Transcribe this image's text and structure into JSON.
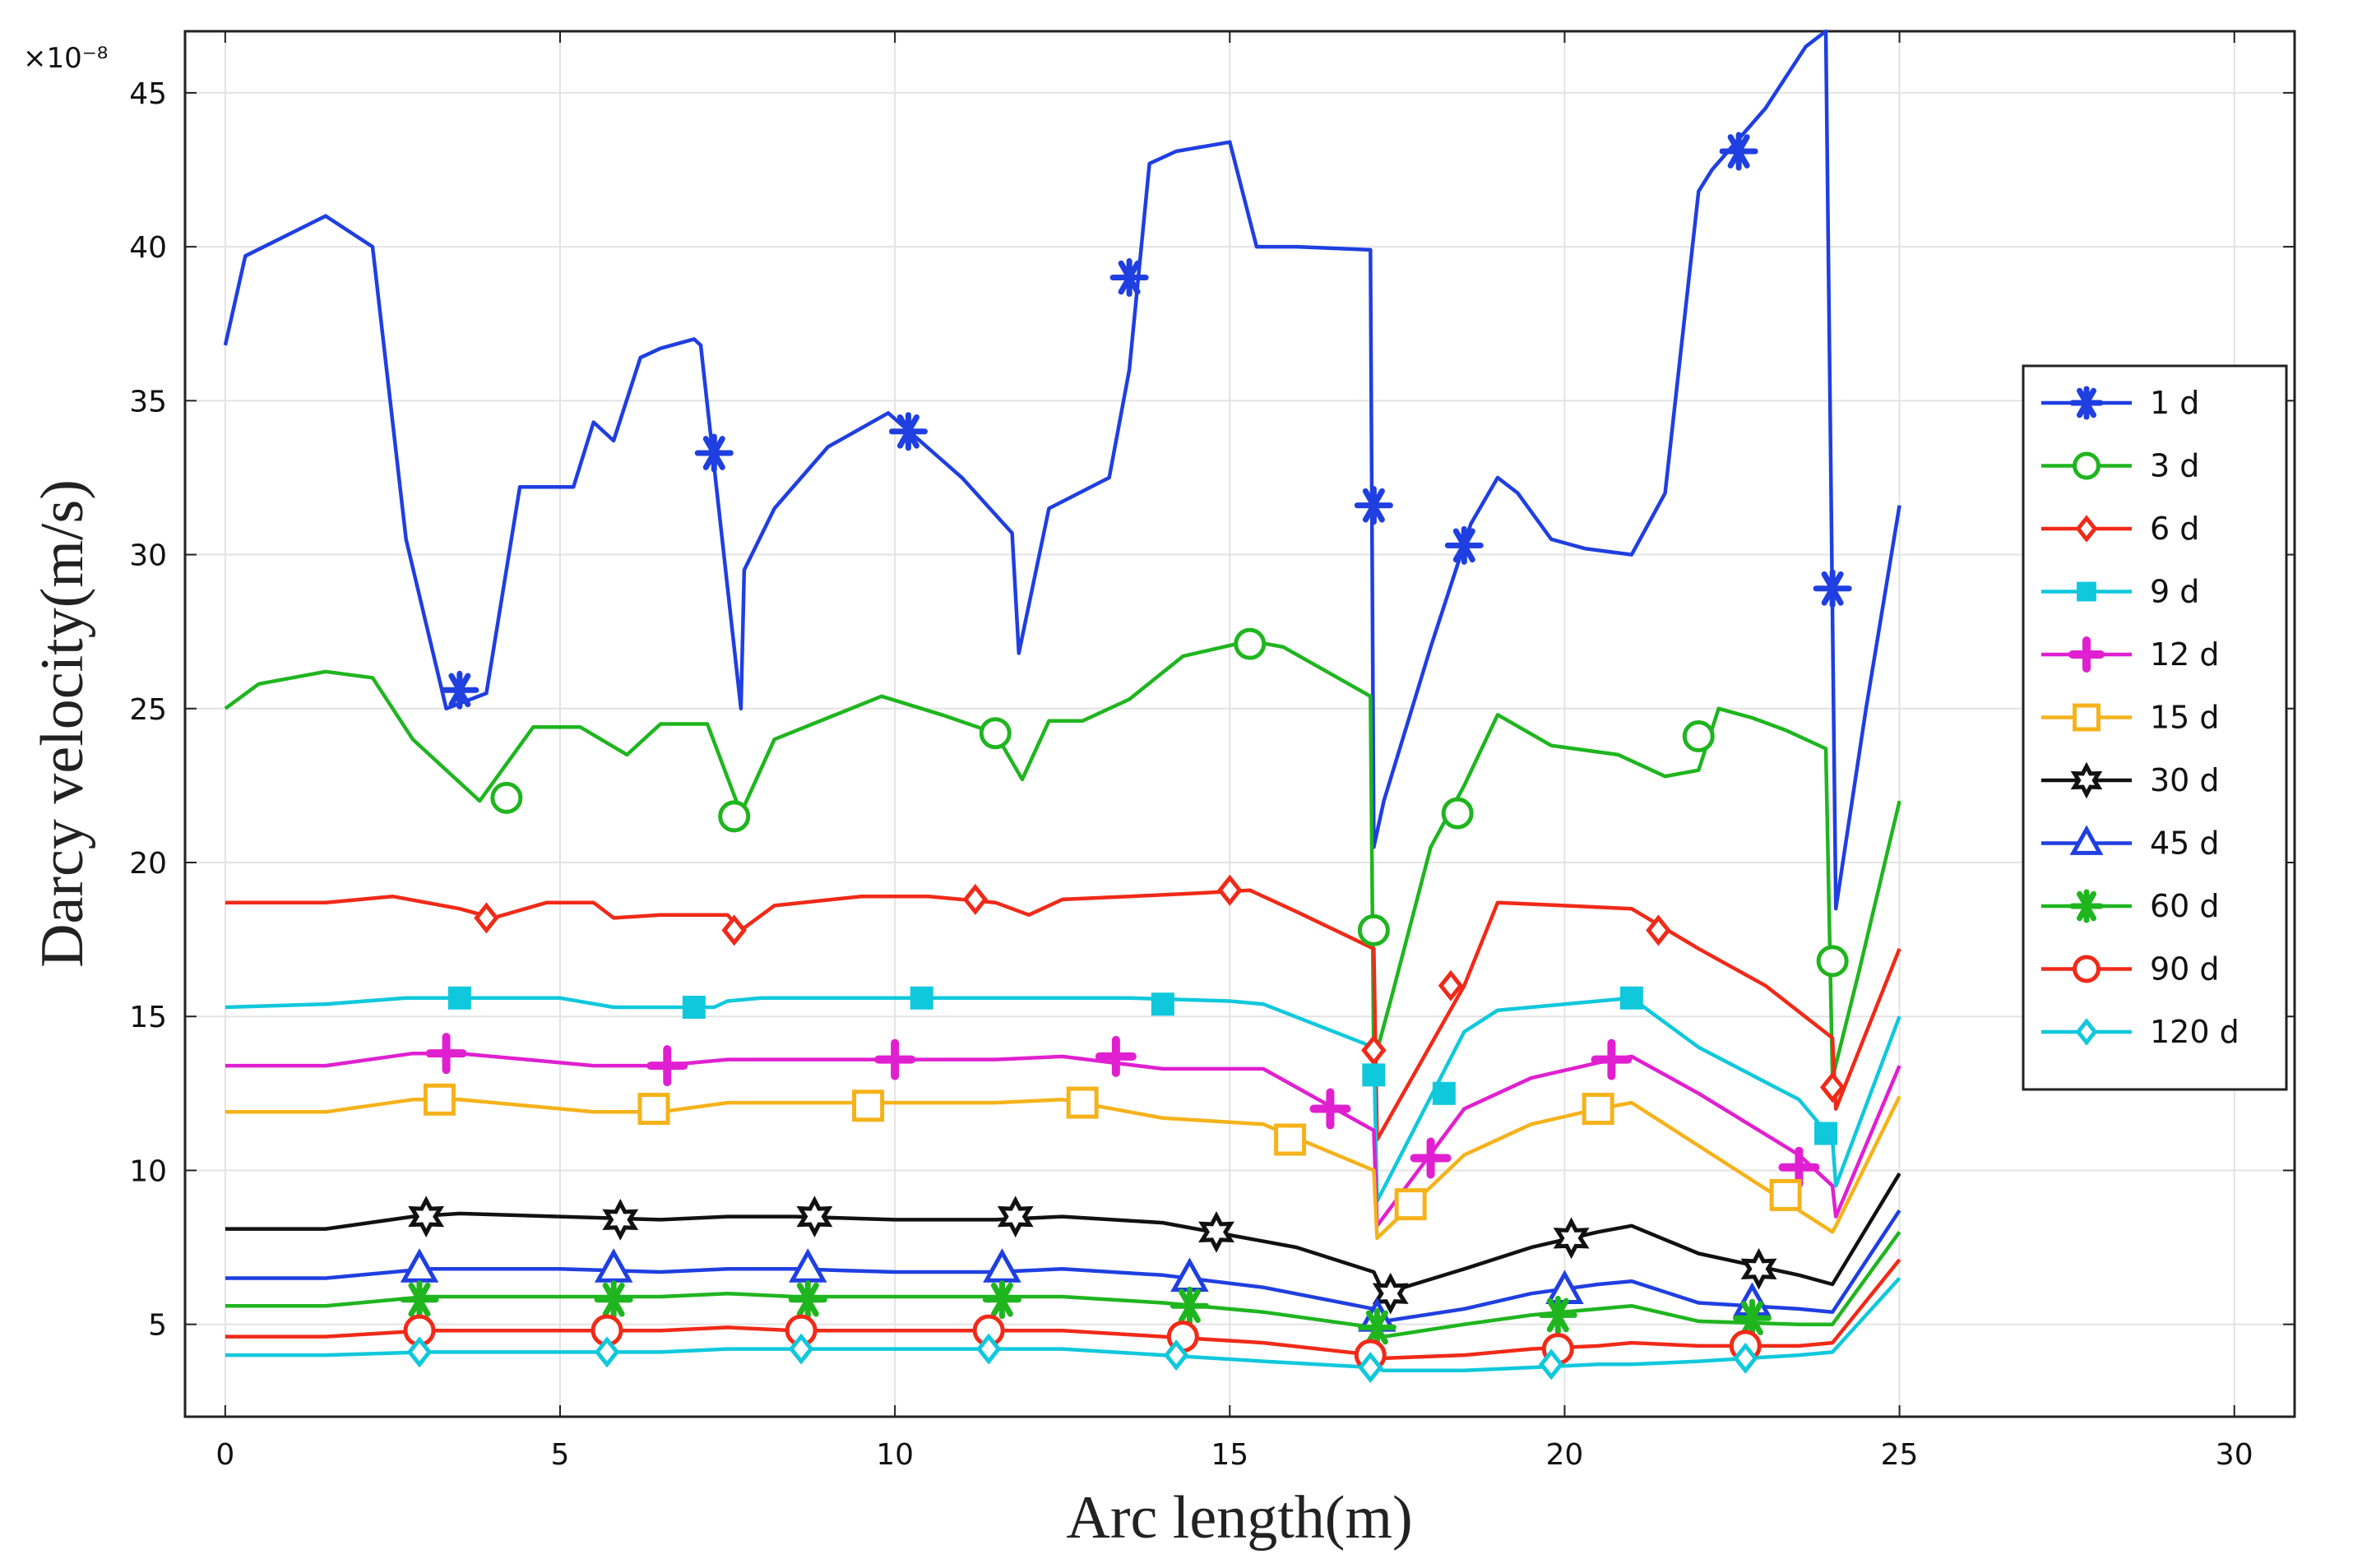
{
  "chart_data": {
    "type": "line",
    "title": "",
    "xlabel": "Arc length(m)",
    "ylabel": "Darcy velocity(m/s)",
    "y_exponent_label": "×10⁻⁸",
    "xlim": [
      -0.6,
      30.9
    ],
    "ylim": [
      2.0,
      47.0
    ],
    "xticks": [
      0,
      5,
      10,
      15,
      20,
      25,
      30
    ],
    "yticks": [
      5,
      10,
      15,
      20,
      25,
      30,
      35,
      40,
      45
    ],
    "grid": true,
    "legend_position": "right",
    "series": [
      {
        "name": "1 d",
        "color": "#1f3fe0",
        "marker": "asterisk",
        "x": [
          0,
          0.3,
          1.5,
          2.2,
          2.7,
          3.3,
          3.9,
          4.4,
          5.2,
          5.5,
          5.8,
          6.2,
          6.5,
          7.0,
          7.1,
          7.7,
          7.75,
          8.2,
          9.0,
          9.9,
          11.0,
          11.75,
          11.85,
          12.3,
          13.2,
          13.5,
          13.8,
          14.2,
          15.0,
          15.4,
          16.0,
          17.1,
          17.15,
          17.3,
          18.0,
          18.6,
          19.0,
          19.3,
          19.8,
          20.3,
          21.0,
          21.5,
          22.0,
          22.2,
          23.0,
          23.6,
          23.9,
          24.05,
          24.5,
          25.0
        ],
        "y": [
          36.8,
          39.7,
          41.0,
          40.0,
          30.5,
          25.0,
          25.5,
          32.2,
          32.2,
          34.3,
          33.7,
          36.4,
          36.7,
          37.0,
          36.8,
          25.0,
          29.5,
          31.5,
          33.5,
          34.6,
          32.5,
          30.7,
          26.8,
          31.5,
          32.5,
          36.0,
          42.7,
          43.1,
          43.4,
          40.0,
          40.0,
          39.9,
          20.5,
          22.0,
          27.0,
          31.0,
          32.5,
          32.0,
          30.5,
          30.2,
          30.0,
          32.0,
          41.8,
          42.5,
          44.5,
          46.5,
          47.0,
          18.5,
          25.0,
          31.6
        ],
        "marker_x": [
          3.5,
          7.3,
          10.2,
          13.5,
          17.15,
          18.5,
          22.6,
          24.0
        ],
        "marker_y": [
          25.6,
          33.3,
          34.0,
          39.0,
          31.6,
          30.3,
          43.1,
          28.9
        ]
      },
      {
        "name": "3 d",
        "color": "#1fb51f",
        "marker": "circle",
        "x": [
          0,
          0.5,
          1.5,
          2.2,
          2.8,
          3.8,
          4.6,
          5.3,
          6.0,
          6.5,
          7.2,
          7.7,
          8.2,
          9.0,
          9.8,
          10.7,
          11.5,
          11.9,
          12.3,
          12.8,
          13.5,
          14.3,
          15.3,
          15.8,
          17.1,
          17.15,
          17.4,
          18.0,
          18.5,
          19.0,
          19.8,
          20.8,
          21.5,
          22.0,
          22.3,
          22.8,
          23.3,
          23.9,
          24.0,
          24.4,
          25.0
        ],
        "y": [
          25.0,
          25.8,
          26.2,
          26.0,
          24.0,
          22.0,
          24.4,
          24.4,
          23.5,
          24.5,
          24.5,
          21.6,
          24.0,
          24.7,
          25.4,
          24.8,
          24.2,
          22.7,
          24.6,
          24.6,
          25.3,
          26.7,
          27.2,
          27.0,
          25.4,
          13.5,
          15.5,
          20.5,
          22.5,
          24.8,
          23.8,
          23.5,
          22.8,
          23.0,
          25.0,
          24.7,
          24.3,
          23.7,
          13.0,
          16.5,
          22.0
        ],
        "marker_x": [
          4.2,
          7.6,
          11.5,
          15.3,
          17.15,
          18.4,
          22.0,
          24.0
        ],
        "marker_y": [
          22.1,
          21.5,
          24.2,
          27.1,
          17.8,
          21.6,
          24.1,
          16.8
        ]
      },
      {
        "name": "6 d",
        "color": "#f02a18",
        "marker": "diamond",
        "x": [
          0,
          1.5,
          2.5,
          3.5,
          4.0,
          4.8,
          5.5,
          5.8,
          6.5,
          7.5,
          7.7,
          8.2,
          9.5,
          10.5,
          11.5,
          12.0,
          12.5,
          13.5,
          14.5,
          15.3,
          16.0,
          17.15,
          17.2,
          18.5,
          19.0,
          20.0,
          21.0,
          22.0,
          23.0,
          24.0,
          24.05,
          25.0
        ],
        "y": [
          18.7,
          18.7,
          18.9,
          18.5,
          18.2,
          18.7,
          18.7,
          18.2,
          18.3,
          18.3,
          17.8,
          18.6,
          18.9,
          18.9,
          18.7,
          18.3,
          18.8,
          18.9,
          19.0,
          19.1,
          18.4,
          17.2,
          11.0,
          16.0,
          18.7,
          18.6,
          18.5,
          17.2,
          16.0,
          14.3,
          12.0,
          17.2
        ],
        "marker_x": [
          3.9,
          7.6,
          11.2,
          15.0,
          17.15,
          18.3,
          21.4,
          24.0
        ],
        "marker_y": [
          18.2,
          17.8,
          18.8,
          19.1,
          13.9,
          16.0,
          17.8,
          12.7
        ]
      },
      {
        "name": "9 d",
        "color": "#10c8dc",
        "marker": "square",
        "x": [
          0,
          1.5,
          2.7,
          3.5,
          5.0,
          5.8,
          6.5,
          7.3,
          7.5,
          8.0,
          10.0,
          11.0,
          12.3,
          13.5,
          15.0,
          15.5,
          17.15,
          17.2,
          18.5,
          19.0,
          20.0,
          21.0,
          22.0,
          23.5,
          24.0,
          24.05,
          25.0
        ],
        "y": [
          15.3,
          15.4,
          15.6,
          15.6,
          15.6,
          15.3,
          15.3,
          15.3,
          15.5,
          15.6,
          15.6,
          15.6,
          15.6,
          15.6,
          15.5,
          15.4,
          14.0,
          9.0,
          14.5,
          15.2,
          15.4,
          15.6,
          14.0,
          12.3,
          11.0,
          9.5,
          15.0
        ],
        "marker_x": [
          3.5,
          7.0,
          10.4,
          14.0,
          17.15,
          18.2,
          21.0,
          23.9
        ],
        "marker_y": [
          15.6,
          15.3,
          15.6,
          15.4,
          13.1,
          12.5,
          15.6,
          11.2
        ]
      },
      {
        "name": "12 d",
        "color": "#e020d0",
        "marker": "plus",
        "x": [
          0,
          1.5,
          2.8,
          3.5,
          4.5,
          5.5,
          6.5,
          7.5,
          8.5,
          10.0,
          11.5,
          12.5,
          14.0,
          15.5,
          17.15,
          17.2,
          18.5,
          19.5,
          20.5,
          21.0,
          22.0,
          23.5,
          24.0,
          24.05,
          25.0
        ],
        "y": [
          13.4,
          13.4,
          13.8,
          13.8,
          13.6,
          13.4,
          13.4,
          13.6,
          13.6,
          13.6,
          13.6,
          13.7,
          13.3,
          13.3,
          11.3,
          8.2,
          12.0,
          13.0,
          13.5,
          13.7,
          12.5,
          10.5,
          9.5,
          8.5,
          13.4
        ],
        "marker_x": [
          3.3,
          6.6,
          10.0,
          13.3,
          16.5,
          18.0,
          20.7,
          23.5
        ],
        "marker_y": [
          13.8,
          13.4,
          13.6,
          13.7,
          12.0,
          10.4,
          13.6,
          10.1
        ]
      },
      {
        "name": "15 d",
        "color": "#f5b21a",
        "marker": "square-open",
        "x": [
          0,
          1.5,
          2.8,
          3.5,
          4.5,
          5.5,
          6.5,
          7.5,
          8.5,
          10.0,
          11.5,
          12.5,
          14.0,
          15.5,
          17.15,
          17.2,
          18.5,
          19.5,
          20.5,
          21.0,
          22.0,
          23.5,
          24.0,
          24.05,
          25.0
        ],
        "y": [
          11.9,
          11.9,
          12.3,
          12.3,
          12.1,
          11.9,
          11.9,
          12.2,
          12.2,
          12.2,
          12.2,
          12.3,
          11.7,
          11.5,
          10.0,
          7.8,
          10.5,
          11.5,
          12.0,
          12.2,
          10.8,
          8.7,
          8.0,
          8.2,
          12.4
        ],
        "marker_x": [
          3.2,
          6.4,
          9.6,
          12.8,
          15.9,
          17.7,
          20.5,
          23.3
        ],
        "marker_y": [
          12.3,
          12.0,
          12.1,
          12.2,
          11.0,
          8.9,
          12.0,
          9.2
        ]
      },
      {
        "name": "30 d",
        "color": "#111111",
        "marker": "hexagram",
        "x": [
          0,
          1.5,
          2.8,
          3.5,
          5.0,
          6.5,
          7.5,
          8.5,
          10.0,
          11.5,
          12.5,
          14.0,
          15.0,
          16.0,
          17.15,
          17.3,
          18.5,
          19.5,
          20.5,
          21.0,
          22.0,
          23.5,
          24.0,
          25.0
        ],
        "y": [
          8.1,
          8.1,
          8.5,
          8.6,
          8.5,
          8.4,
          8.5,
          8.5,
          8.4,
          8.4,
          8.5,
          8.3,
          7.9,
          7.5,
          6.7,
          6.0,
          6.8,
          7.5,
          8.0,
          8.2,
          7.3,
          6.6,
          6.3,
          9.9
        ],
        "marker_x": [
          3.0,
          5.9,
          8.8,
          11.8,
          14.8,
          17.4,
          20.1,
          22.9
        ],
        "marker_y": [
          8.5,
          8.4,
          8.5,
          8.5,
          8.0,
          6.0,
          7.8,
          6.8
        ]
      },
      {
        "name": "45 d",
        "color": "#1f3fe0",
        "marker": "triangle",
        "x": [
          0,
          1.5,
          3.0,
          5.0,
          6.5,
          7.5,
          8.5,
          10.0,
          11.5,
          12.5,
          14.0,
          15.5,
          17.15,
          17.3,
          18.5,
          19.5,
          20.5,
          21.0,
          22.0,
          23.5,
          24.0,
          25.0
        ],
        "y": [
          6.5,
          6.5,
          6.8,
          6.8,
          6.7,
          6.8,
          6.8,
          6.7,
          6.7,
          6.8,
          6.6,
          6.2,
          5.5,
          5.1,
          5.5,
          6.0,
          6.3,
          6.4,
          5.7,
          5.5,
          5.4,
          8.7
        ],
        "marker_x": [
          2.9,
          5.8,
          8.7,
          11.6,
          14.4,
          17.2,
          20.0,
          22.8
        ],
        "marker_y": [
          6.8,
          6.8,
          6.8,
          6.8,
          6.5,
          5.2,
          6.1,
          5.7
        ]
      },
      {
        "name": "60 d",
        "color": "#1fb51f",
        "marker": "asterisk",
        "x": [
          0,
          1.5,
          3.0,
          5.0,
          6.5,
          7.5,
          8.5,
          10.0,
          11.5,
          12.5,
          14.0,
          15.5,
          17.15,
          17.3,
          18.5,
          19.5,
          20.5,
          21.0,
          22.0,
          23.5,
          24.0,
          25.0
        ],
        "y": [
          5.6,
          5.6,
          5.9,
          5.9,
          5.9,
          6.0,
          5.9,
          5.9,
          5.9,
          5.9,
          5.7,
          5.4,
          4.9,
          4.6,
          5.0,
          5.3,
          5.5,
          5.6,
          5.1,
          5.0,
          5.0,
          8.0
        ],
        "marker_x": [
          2.9,
          5.8,
          8.7,
          11.6,
          14.4,
          17.2,
          19.9,
          22.8
        ],
        "marker_y": [
          5.8,
          5.8,
          5.8,
          5.8,
          5.6,
          4.9,
          5.3,
          5.2
        ]
      },
      {
        "name": "90 d",
        "color": "#f02a18",
        "marker": "circle",
        "x": [
          0,
          1.5,
          3.0,
          5.0,
          6.5,
          7.5,
          8.5,
          10.0,
          11.5,
          12.5,
          14.0,
          15.5,
          17.15,
          17.3,
          18.5,
          19.5,
          20.5,
          21.0,
          22.0,
          23.5,
          24.0,
          25.0
        ],
        "y": [
          4.6,
          4.6,
          4.8,
          4.8,
          4.8,
          4.9,
          4.8,
          4.8,
          4.8,
          4.8,
          4.6,
          4.4,
          4.0,
          3.9,
          4.0,
          4.2,
          4.3,
          4.4,
          4.3,
          4.3,
          4.4,
          7.1
        ],
        "marker_x": [
          2.9,
          5.7,
          8.6,
          11.4,
          14.3,
          17.1,
          19.9,
          22.7
        ],
        "marker_y": [
          4.8,
          4.8,
          4.8,
          4.8,
          4.6,
          4.0,
          4.2,
          4.3
        ]
      },
      {
        "name": "120 d",
        "color": "#10c8dc",
        "marker": "diamond",
        "x": [
          0,
          1.5,
          3.0,
          5.0,
          6.5,
          7.5,
          8.5,
          10.0,
          11.5,
          12.5,
          14.0,
          15.5,
          17.15,
          17.3,
          18.5,
          19.5,
          20.5,
          21.0,
          22.0,
          23.5,
          24.0,
          25.0
        ],
        "y": [
          4.0,
          4.0,
          4.1,
          4.1,
          4.1,
          4.2,
          4.2,
          4.2,
          4.2,
          4.2,
          4.0,
          3.8,
          3.6,
          3.5,
          3.5,
          3.6,
          3.7,
          3.7,
          3.8,
          4.0,
          4.1,
          6.5
        ],
        "marker_x": [
          2.9,
          5.7,
          8.6,
          11.4,
          14.2,
          17.1,
          19.8,
          22.7
        ],
        "marker_y": [
          4.1,
          4.1,
          4.2,
          4.2,
          4.0,
          3.6,
          3.7,
          3.9
        ]
      }
    ]
  }
}
